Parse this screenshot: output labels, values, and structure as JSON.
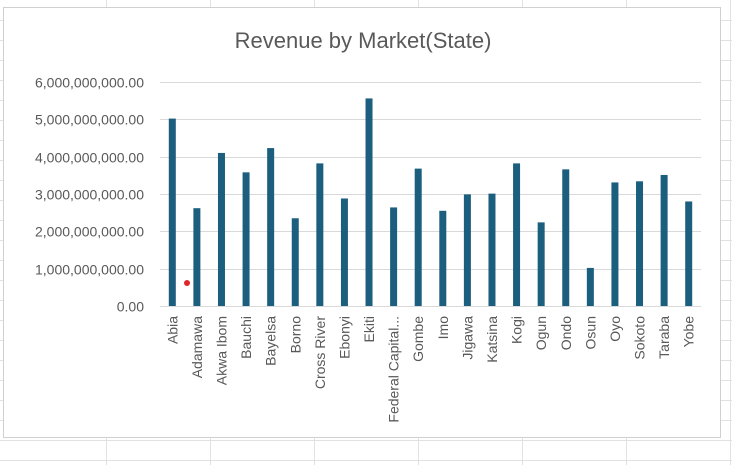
{
  "chart_data": {
    "type": "bar",
    "title": "Revenue by Market(State)",
    "xlabel": "",
    "ylabel": "",
    "ylim": [
      0,
      6000000000
    ],
    "yticks": [
      "0.00",
      "1,000,000,000.00",
      "2,000,000,000.00",
      "3,000,000,000.00",
      "4,000,000,000.00",
      "5,000,000,000.00",
      "6,000,000,000.00"
    ],
    "grid": true,
    "legend": "none",
    "bar_color": "#1b5e7e",
    "categories": [
      "Abia",
      "Adamawa",
      "Akwa Ibom",
      "Bauchi",
      "Bayelsa",
      "Borno",
      "Cross River",
      "Ebonyi",
      "Ekiti",
      "Federal Capital...",
      "Gombe",
      "Imo",
      "Jigawa",
      "Katsina",
      "Kogi",
      "Ogun",
      "Ondo",
      "Osun",
      "Oyo",
      "Sokoto",
      "Taraba",
      "Yobe"
    ],
    "values": [
      5020000000,
      2620000000,
      4100000000,
      3580000000,
      4230000000,
      2350000000,
      3820000000,
      2880000000,
      5560000000,
      2640000000,
      3680000000,
      2550000000,
      2990000000,
      3010000000,
      3820000000,
      2240000000,
      3660000000,
      1020000000,
      3310000000,
      3340000000,
      3510000000,
      2800000000
    ]
  }
}
